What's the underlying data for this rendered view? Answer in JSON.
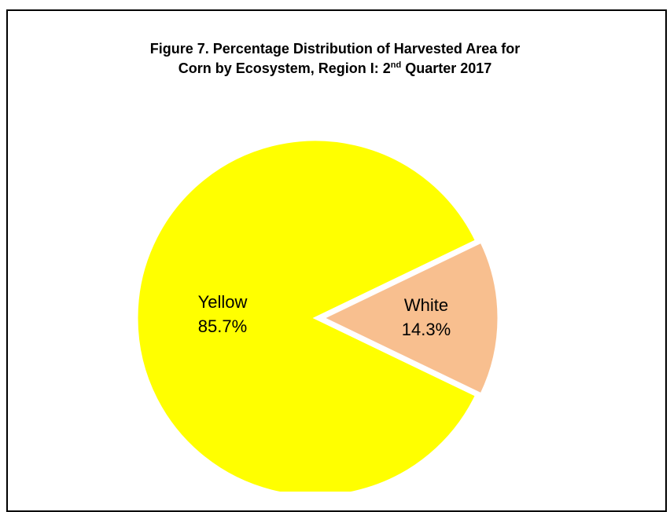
{
  "title": {
    "line1": "Figure 7. Percentage Distribution of Harvested Area for",
    "line2_pre": "Corn by Ecosystem, Region I: 2",
    "line2_sup": "nd",
    "line2_post": " Quarter 2017"
  },
  "chart_data": {
    "type": "pie",
    "title": "Figure 7. Percentage Distribution of Harvested Area for Corn by Ecosystem, Region I: 2nd Quarter 2017",
    "categories": [
      "Yellow",
      "White"
    ],
    "values": [
      85.7,
      14.3
    ],
    "labels": [
      "85.7%",
      "14.3%"
    ],
    "colors": [
      "#FFFF00",
      "#F8BF8F"
    ],
    "legend": "none"
  }
}
